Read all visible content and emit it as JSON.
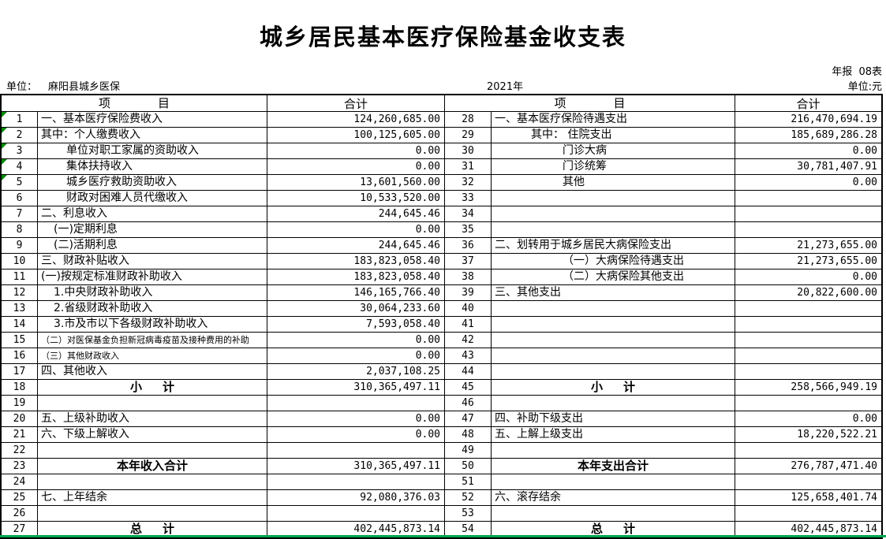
{
  "page": {
    "title": "城乡居民基本医疗保险基金收支表",
    "report_badge": "年报  08表",
    "unit_label": "单位：",
    "unit_value": "麻阳县城乡医保",
    "year": "2021年",
    "currency_note": "单位:元"
  },
  "colors": {
    "marker_green": "#008A00",
    "gridline_green": "#00A650"
  },
  "table": {
    "headers": {
      "item_first": "项",
      "item_second": "目",
      "total": "合计"
    },
    "income_rows": [
      {
        "no": "1",
        "item": "一、基本医疗保险费收入",
        "value": "124,260,685.00",
        "marker": true
      },
      {
        "no": "2",
        "item": "其中：个人缴费收入",
        "value": "100,125,605.00",
        "marker": true
      },
      {
        "no": "3",
        "item": "单位对职工家属的资助收入",
        "value": "0.00",
        "indent": 2,
        "marker": true
      },
      {
        "no": "4",
        "item": "集体扶持收入",
        "value": "0.00",
        "indent": 2,
        "marker": true
      },
      {
        "no": "5",
        "item": "城乡医疗救助资助收入",
        "value": "13,601,560.00",
        "indent": 2,
        "marker": true
      },
      {
        "no": "6",
        "item": "财政对困难人员代缴收入",
        "value": "10,533,520.00",
        "indent": 2
      },
      {
        "no": "7",
        "item": "二、利息收入",
        "value": "244,645.46"
      },
      {
        "no": "8",
        "item": "(一)定期利息",
        "value": "0.00",
        "indent": 1
      },
      {
        "no": "9",
        "item": "(二)活期利息",
        "value": "244,645.46",
        "indent": 1
      },
      {
        "no": "10",
        "item": "三、财政补贴收入",
        "value": "183,823,058.40"
      },
      {
        "no": "11",
        "item": "(一)按规定标准财政补助收入",
        "value": "183,823,058.40"
      },
      {
        "no": "12",
        "item": "1.中央财政补助收入",
        "value": "146,165,766.40",
        "indent": 1
      },
      {
        "no": "13",
        "item": "2.省级财政补助收入",
        "value": "30,064,233.60",
        "indent": 1
      },
      {
        "no": "14",
        "item": "3.市及市以下各级财政补助收入",
        "value": "7,593,058.40",
        "indent": 1
      },
      {
        "no": "15",
        "item": "（二）对医保基金负担新冠病毒疫苗及接种费用的补助",
        "value": "0.00",
        "small": true
      },
      {
        "no": "16",
        "item": "（三）其他财政收入",
        "value": "0.00",
        "small": true
      },
      {
        "no": "17",
        "item": "四、其他收入",
        "value": "2,037,108.25"
      },
      {
        "no": "18",
        "item": "小     计",
        "value": "310,365,497.11",
        "bold": true
      },
      {
        "no": "19",
        "item": "",
        "value": ""
      },
      {
        "no": "20",
        "item": "五、上级补助收入",
        "value": "0.00"
      },
      {
        "no": "21",
        "item": "六、下级上解收入",
        "value": "0.00"
      },
      {
        "no": "22",
        "item": "",
        "value": ""
      },
      {
        "no": "23",
        "item": "本年收入合计",
        "value": "310,365,497.11",
        "bold": true
      },
      {
        "no": "24",
        "item": "",
        "value": ""
      },
      {
        "no": "25",
        "item": "七、上年结余",
        "value": "92,080,376.03"
      },
      {
        "no": "26",
        "item": "",
        "value": ""
      },
      {
        "no": "27",
        "item": "总     计",
        "value": "402,445,873.14",
        "bold": true
      }
    ],
    "expense_rows": [
      {
        "no": "28",
        "item": "一、基本医疗保险待遇支出",
        "value": "216,470,694.19"
      },
      {
        "no": "29",
        "item": "其中： 住院支出",
        "value": "185,689,286.28",
        "indent": 3
      },
      {
        "no": "30",
        "item": "门诊大病",
        "value": "0.00",
        "indent": 6
      },
      {
        "no": "31",
        "item": "门诊统筹",
        "value": "30,781,407.91",
        "indent": 6
      },
      {
        "no": "32",
        "item": "其他",
        "value": "0.00",
        "indent": 6
      },
      {
        "no": "33",
        "item": "",
        "value": ""
      },
      {
        "no": "34",
        "item": "",
        "value": ""
      },
      {
        "no": "35",
        "item": "",
        "value": ""
      },
      {
        "no": "36",
        "item": "二、划转用于城乡居民大病保险支出",
        "value": "21,273,655.00"
      },
      {
        "no": "37",
        "item": "（一）大病保险待遇支出",
        "value": "21,273,655.00",
        "indent": 6
      },
      {
        "no": "38",
        "item": "（二）大病保险其他支出",
        "value": "0.00",
        "indent": 6
      },
      {
        "no": "39",
        "item": "三、其他支出",
        "value": "20,822,600.00"
      },
      {
        "no": "40",
        "item": "",
        "value": ""
      },
      {
        "no": "41",
        "item": "",
        "value": ""
      },
      {
        "no": "42",
        "item": "",
        "value": ""
      },
      {
        "no": "43",
        "item": "",
        "value": ""
      },
      {
        "no": "44",
        "item": "",
        "value": ""
      },
      {
        "no": "45",
        "item": "小     计",
        "value": "258,566,949.19",
        "bold": true
      },
      {
        "no": "46",
        "item": "",
        "value": ""
      },
      {
        "no": "47",
        "item": "四、补助下级支出",
        "value": "0.00"
      },
      {
        "no": "48",
        "item": "五、上解上级支出",
        "value": "18,220,522.21"
      },
      {
        "no": "49",
        "item": "",
        "value": ""
      },
      {
        "no": "50",
        "item": "本年支出合计",
        "value": "276,787,471.40",
        "bold": true
      },
      {
        "no": "51",
        "item": "",
        "value": ""
      },
      {
        "no": "52",
        "item": "六、滚存结余",
        "value": "125,658,401.74"
      },
      {
        "no": "53",
        "item": "",
        "value": ""
      },
      {
        "no": "54",
        "item": "总     计",
        "value": "402,445,873.14",
        "bold": true
      }
    ]
  }
}
